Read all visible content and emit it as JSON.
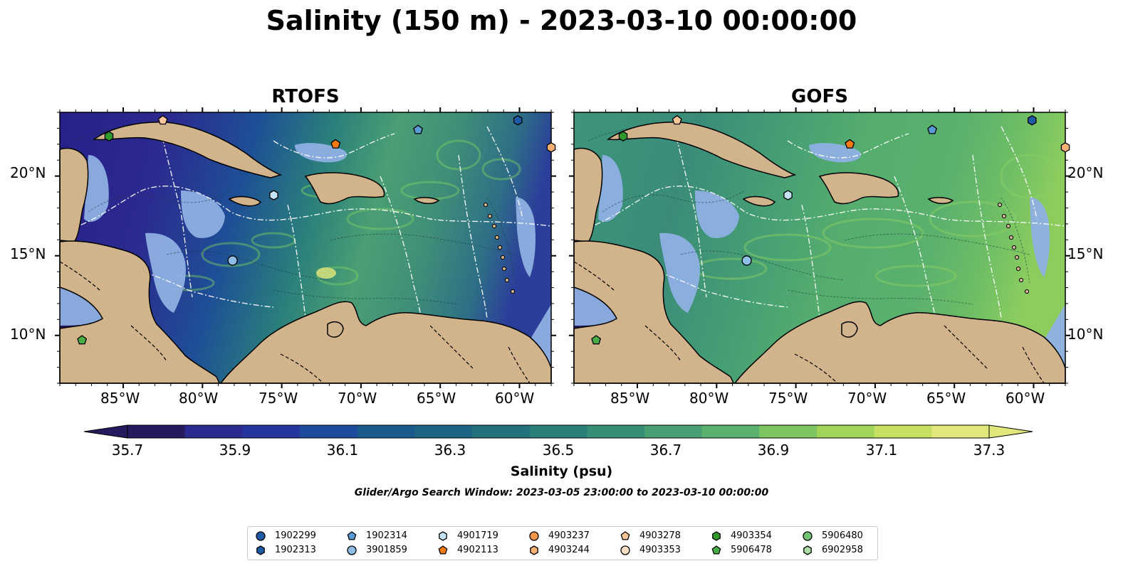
{
  "title": "Salinity (150 m) - 2023-03-10 00:00:00",
  "panels": [
    {
      "id": "left",
      "title": "RTOFS",
      "model": "rtofs"
    },
    {
      "id": "right",
      "title": "GOFS",
      "model": "gofs"
    }
  ],
  "axes": {
    "lon_ticks": [
      "85°W",
      "80°W",
      "75°W",
      "70°W",
      "65°W",
      "60°W"
    ],
    "lat_ticks": [
      "20°N",
      "15°N",
      "10°N"
    ]
  },
  "colorbar": {
    "title": "Salinity (psu)",
    "ticks": [
      "35.7",
      "35.9",
      "36.1",
      "36.3",
      "36.5",
      "36.7",
      "36.9",
      "37.1",
      "37.3"
    ],
    "colors": [
      "#26195e",
      "#2b2a8f",
      "#26359e",
      "#1d4a9b",
      "#185a8d",
      "#1d6583",
      "#22727e",
      "#2a8079",
      "#368e77",
      "#47a073",
      "#5ab16d",
      "#7dc561",
      "#a2d45a",
      "#c8e061",
      "#e1e77a"
    ],
    "extend": "both"
  },
  "subtitle": "Glider/Argo Search Window: 2023-03-05 23:00:00 to 2023-03-10 00:00:00",
  "legend": {
    "columns": [
      [
        {
          "id": "1902299",
          "marker": "circle",
          "color": "#1f5aa6"
        },
        {
          "id": "1902313",
          "marker": "hexagon",
          "color": "#1f5aa6"
        }
      ],
      [
        {
          "id": "1902314",
          "marker": "pentagon",
          "color": "#5b9ad5"
        },
        {
          "id": "3901859",
          "marker": "circle",
          "color": "#8ebde8"
        }
      ],
      [
        {
          "id": "4901719",
          "marker": "hexagon",
          "color": "#c6e2f7"
        },
        {
          "id": "4902113",
          "marker": "pentagon",
          "color": "#f47a14"
        }
      ],
      [
        {
          "id": "4903237",
          "marker": "circle",
          "color": "#f5964a"
        },
        {
          "id": "4903244",
          "marker": "hexagon",
          "color": "#f9b073"
        }
      ],
      [
        {
          "id": "4903278",
          "marker": "pentagon",
          "color": "#fbc79a"
        },
        {
          "id": "4903353",
          "marker": "circle",
          "color": "#fde0c5"
        }
      ],
      [
        {
          "id": "4903354",
          "marker": "hexagon",
          "color": "#2e9a2e"
        },
        {
          "id": "5906478",
          "marker": "pentagon",
          "color": "#47ad47"
        }
      ],
      [
        {
          "id": "5906480",
          "marker": "circle",
          "color": "#74c476"
        },
        {
          "id": "6902958",
          "marker": "hexagon",
          "color": "#a9dfa1"
        }
      ]
    ]
  },
  "map_data": {
    "lon_range": [
      -89,
      -58
    ],
    "lat_range": [
      7,
      24
    ],
    "markers": [
      {
        "id": "4903278",
        "lon": -82.5,
        "lat": 23.5
      },
      {
        "id": "1902313",
        "lon": -60.1,
        "lat": 23.5
      },
      {
        "id": "1902314",
        "lon": -66.4,
        "lat": 22.9
      },
      {
        "id": "4902113",
        "lon": -71.6,
        "lat": 22.0
      },
      {
        "id": "4903354",
        "lon": -85.9,
        "lat": 22.5
      },
      {
        "id": "4901719",
        "lon": -75.5,
        "lat": 18.8
      },
      {
        "id": "3901859",
        "lon": -78.1,
        "lat": 14.7
      },
      {
        "id": "5906478",
        "lon": -87.6,
        "lat": 9.7
      },
      {
        "id": "4903244",
        "lon": -58.0,
        "lat": 21.8
      }
    ]
  },
  "colors": {
    "land": "#d2b48c",
    "shelf": "#8eb0e3",
    "shelf_dark": "#a8c6ee",
    "coast": "#000000"
  }
}
